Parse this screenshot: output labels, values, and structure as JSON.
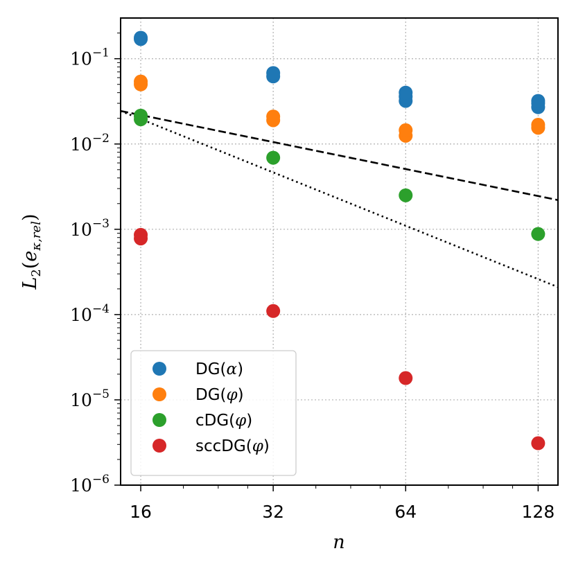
{
  "chart_data": {
    "type": "scatter",
    "title": "",
    "xscale": "log2",
    "yscale": "log10",
    "xlim": [
      14.4,
      142
    ],
    "ylim": [
      1e-06,
      0.3
    ],
    "grid": true,
    "legend_position": "lower-left",
    "xlabel": "n",
    "ylabel": "L₂(e_{κ,rel})",
    "xtick_values": [
      16,
      32,
      64,
      128
    ],
    "xtick_labels": [
      "16",
      "32",
      "64",
      "128"
    ],
    "ytick_values": [
      1e-06,
      1e-05,
      0.0001,
      0.001,
      0.01,
      0.1
    ],
    "ytick_labels": [
      {
        "base": "10",
        "exp": "−6"
      },
      {
        "base": "10",
        "exp": "−5"
      },
      {
        "base": "10",
        "exp": "−4"
      },
      {
        "base": "10",
        "exp": "−3"
      },
      {
        "base": "10",
        "exp": "−2"
      },
      {
        "base": "10",
        "exp": "−1"
      }
    ],
    "series": [
      {
        "name": "DG(α)",
        "name_prefix": "DG(",
        "name_symbol": "α",
        "name_suffix": ")",
        "color": "#1f77b4",
        "points": [
          [
            16,
            0.17
          ],
          [
            16,
            0.176
          ],
          [
            32,
            0.062
          ],
          [
            32,
            0.068
          ],
          [
            64,
            0.032
          ],
          [
            64,
            0.036
          ],
          [
            64,
            0.04
          ],
          [
            128,
            0.027
          ],
          [
            128,
            0.03
          ],
          [
            128,
            0.032
          ]
        ]
      },
      {
        "name": "DG(φ)",
        "name_prefix": "DG(",
        "name_symbol": "φ",
        "name_suffix": ")",
        "color": "#ff7f0e",
        "points": [
          [
            16,
            0.05
          ],
          [
            16,
            0.054
          ],
          [
            32,
            0.019
          ],
          [
            32,
            0.021
          ],
          [
            64,
            0.0125
          ],
          [
            64,
            0.0145
          ],
          [
            128,
            0.0155
          ],
          [
            128,
            0.0168
          ]
        ]
      },
      {
        "name": "cDG(φ)",
        "name_prefix": "cDG(",
        "name_symbol": "φ",
        "name_suffix": ")",
        "color": "#2ca02c",
        "points": [
          [
            16,
            0.0195
          ],
          [
            16,
            0.0215
          ],
          [
            32,
            0.0069
          ],
          [
            64,
            0.0025
          ],
          [
            128,
            0.00088
          ]
        ]
      },
      {
        "name": "sccDG(φ)",
        "name_prefix": "sccDG(",
        "name_symbol": "φ",
        "name_suffix": ")",
        "color": "#d62728",
        "points": [
          [
            16,
            0.00078
          ],
          [
            16,
            0.00086
          ],
          [
            32,
            0.00011
          ],
          [
            64,
            1.8e-05
          ],
          [
            128,
            3.1e-06
          ]
        ]
      }
    ],
    "reference_lines": [
      {
        "name": "dashed",
        "style": "dashed",
        "color": "#000000",
        "points": [
          [
            14.4,
            0.0244
          ],
          [
            142,
            0.0022
          ]
        ]
      },
      {
        "name": "dotted",
        "style": "dotted",
        "color": "#000000",
        "points": [
          [
            14.4,
            0.0244
          ],
          [
            142,
            0.00021
          ]
        ]
      }
    ]
  }
}
